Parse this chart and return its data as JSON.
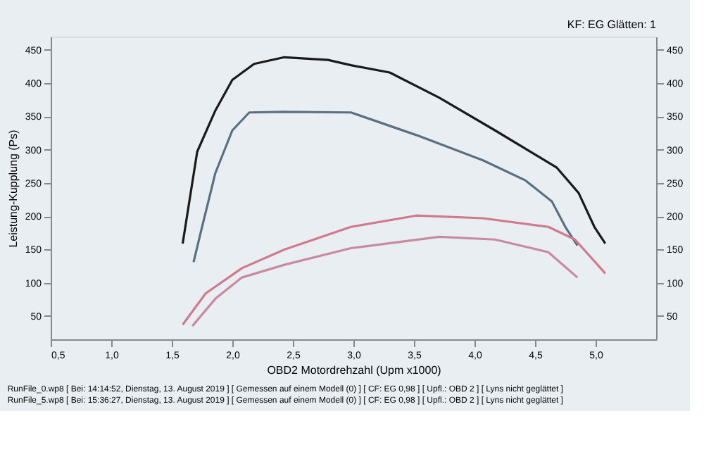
{
  "chart_data": {
    "type": "line",
    "xlabel": "OBD2 Motordrehzahl (Upm x1000)",
    "ylabel": "Leistung-Kupplung (Ps)",
    "annotations": [
      "KF: EG Glätten: 1",
      "RunFile_0.wp8 [ Bei: 14:14:52, Dienstag, 13. August 2019 ] [ Gemessen auf einem Modell (0) ] [ CF: EG 0,98 ] [ Upfl.: OBD 2 ] [ Lyns nicht geglättet ]",
      "RunFile_5.wp8 [ Bei: 15:36:27, Dienstag, 13. August 2019 ] [ Gemessen auf einem Modell (0) ] [ CF: EG 0,98 ] [ Upfl.: OBD 2 ] [ Lyns nicht geglättet ]"
    ],
    "series": [
      {
        "color": "#1a1a1a",
        "x": [
          1.59,
          1.71,
          1.86,
          2.0,
          2.18,
          2.43,
          2.79,
          2.98,
          3.3,
          3.71,
          4.17,
          4.68,
          4.86,
          4.99,
          5.08
        ],
        "values": [
          159,
          297,
          359,
          405,
          429,
          439,
          435,
          427,
          416,
          378,
          329,
          273,
          235,
          184,
          159
        ]
      },
      {
        "color": "#5a7080",
        "x": [
          1.68,
          1.75,
          1.86,
          2.0,
          2.14,
          2.43,
          2.98,
          3.52,
          4.07,
          4.42,
          4.64,
          4.75,
          4.85
        ],
        "values": [
          131,
          184,
          265,
          329,
          356,
          357,
          356,
          322,
          284,
          254,
          222,
          184,
          156
        ]
      },
      {
        "color": "#d07a8a",
        "x": [
          1.59,
          1.78,
          2.08,
          2.43,
          2.98,
          3.52,
          4.07,
          4.61,
          4.83,
          5.08
        ],
        "values": [
          37,
          84,
          122,
          150,
          184,
          201,
          197,
          184,
          165,
          114
        ]
      },
      {
        "color": "#c98aa0",
        "x": [
          1.67,
          1.86,
          2.08,
          2.43,
          2.98,
          3.71,
          4.17,
          4.61,
          4.85
        ],
        "values": [
          35,
          76,
          108,
          127,
          152,
          169,
          165,
          146,
          108
        ]
      }
    ],
    "xlim": [
      0.5,
      5.5
    ],
    "xticks": [
      {
        "value": 0.5,
        "label": "0,5"
      },
      {
        "value": 1.0,
        "label": "1,0"
      },
      {
        "value": 1.5,
        "label": "1,5"
      },
      {
        "value": 2.0,
        "label": "2,0"
      },
      {
        "value": 2.5,
        "label": "2,5"
      },
      {
        "value": 3.0,
        "label": "3,0"
      },
      {
        "value": 3.5,
        "label": "3,5"
      },
      {
        "value": 4.0,
        "label": "4,0"
      },
      {
        "value": 4.5,
        "label": "4,5"
      },
      {
        "value": 5.0,
        "label": "5,0"
      }
    ],
    "ylim": [
      15,
      470
    ],
    "yticks": [
      50,
      100,
      150,
      200,
      250,
      300,
      350,
      400,
      450
    ],
    "y2lim": [
      15,
      470
    ],
    "y2ticks": [
      50,
      100,
      150,
      200,
      250,
      300,
      350,
      400,
      450
    ],
    "grid": false,
    "legend": false,
    "marker": "none",
    "line_style": "solid"
  }
}
